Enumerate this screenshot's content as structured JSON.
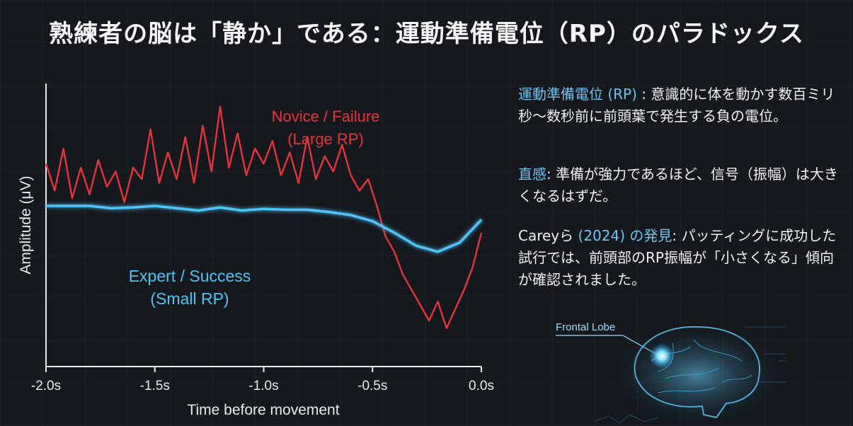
{
  "title": "熟練者の脳は「静か」である：運動準備電位（RP）のパラドックス",
  "chart_data": {
    "type": "line",
    "xlabel": "Time before movement",
    "ylabel": "Amplitude (μV)",
    "xlim": [
      -2.0,
      0.0
    ],
    "x_ticks": [
      "-2.0s",
      "-1.5s",
      "-1.0s",
      "-0.5s",
      "0.0s"
    ],
    "series": [
      {
        "name": "Novice / Failure (Large RP)",
        "label_line1": "Novice / Failure",
        "label_line2": "(Large RP)",
        "color": "#e8333a",
        "x": [
          -2.0,
          -1.96,
          -1.92,
          -1.88,
          -1.84,
          -1.8,
          -1.76,
          -1.72,
          -1.68,
          -1.64,
          -1.6,
          -1.56,
          -1.52,
          -1.48,
          -1.44,
          -1.4,
          -1.36,
          -1.32,
          -1.28,
          -1.24,
          -1.2,
          -1.16,
          -1.12,
          -1.08,
          -1.04,
          -1.0,
          -0.96,
          -0.92,
          -0.88,
          -0.84,
          -0.8,
          -0.76,
          -0.72,
          -0.68,
          -0.64,
          -0.6,
          -0.56,
          -0.52,
          -0.48,
          -0.44,
          -0.4,
          -0.36,
          -0.32,
          -0.28,
          -0.24,
          -0.2,
          -0.16,
          -0.12,
          -0.08,
          -0.04,
          0.0
        ],
        "y": [
          0.55,
          0.2,
          0.75,
          0.1,
          0.5,
          0.15,
          0.6,
          0.25,
          0.45,
          0.05,
          0.5,
          0.35,
          1.0,
          0.3,
          0.7,
          0.35,
          0.9,
          0.3,
          1.05,
          0.45,
          1.3,
          0.5,
          0.95,
          0.4,
          0.75,
          0.55,
          0.85,
          0.4,
          0.7,
          0.3,
          0.9,
          0.35,
          0.65,
          0.45,
          0.8,
          0.4,
          0.2,
          0.35,
          0.0,
          -0.4,
          -0.6,
          -0.9,
          -1.1,
          -1.3,
          -1.5,
          -1.25,
          -1.6,
          -1.35,
          -1.1,
          -0.8,
          -0.35
        ]
      },
      {
        "name": "Expert / Success (Small RP)",
        "label_line1": "Expert / Success",
        "label_line2": "(Small RP)",
        "color": "#4fc3f7",
        "x": [
          -2.0,
          -1.9,
          -1.8,
          -1.7,
          -1.6,
          -1.5,
          -1.4,
          -1.3,
          -1.2,
          -1.1,
          -1.0,
          -0.9,
          -0.8,
          -0.7,
          -0.6,
          -0.5,
          -0.4,
          -0.3,
          -0.2,
          -0.1,
          0.0
        ],
        "y": [
          0.0,
          0.0,
          0.0,
          -0.03,
          -0.02,
          0.0,
          -0.03,
          -0.06,
          -0.02,
          -0.06,
          -0.04,
          -0.05,
          -0.05,
          -0.08,
          -0.12,
          -0.2,
          -0.35,
          -0.52,
          -0.6,
          -0.48,
          -0.18
        ]
      }
    ],
    "ylim": [
      -2.1,
      1.6
    ]
  },
  "panel": {
    "p1_accent": "運動準備電位 (RP)",
    "p1_text": " : 意識的に体を動かす数百ミリ秒〜数秒前に前頭葉で発生する負の電位。",
    "p2_accent": "直感",
    "p2_text": ": 準備が強力であるほど、信号（振幅）は大きくなるはずだ。",
    "p3_lead": "Careyら",
    "p3_accent": " (2024) の発見",
    "p3_text": ": パッティングに成功した試行では、前頭部のRP振幅が「小さくなる」傾向が確認されました。"
  },
  "brain_label": "Frontal Lobe",
  "colors": {
    "accent": "#6ec4f0",
    "novice": "#e8333a",
    "expert": "#4fc3f7"
  }
}
